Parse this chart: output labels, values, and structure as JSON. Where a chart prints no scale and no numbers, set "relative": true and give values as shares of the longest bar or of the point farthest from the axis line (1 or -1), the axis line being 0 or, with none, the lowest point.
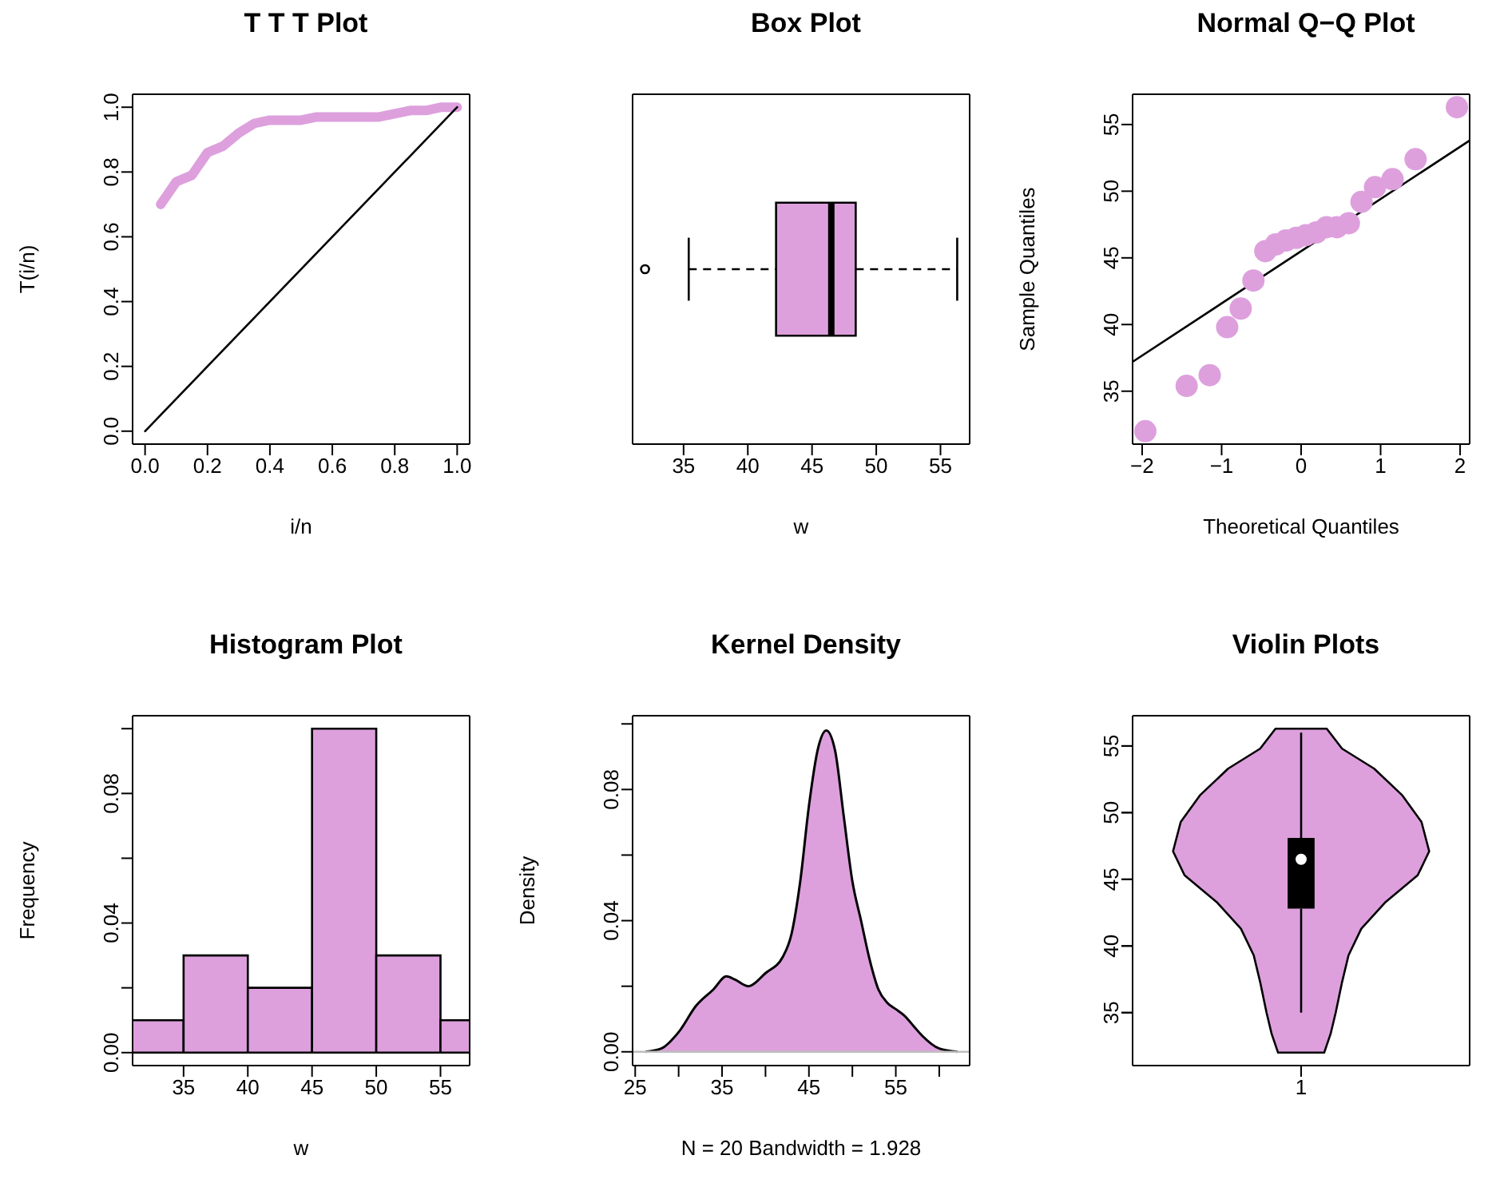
{
  "chart_data": [
    {
      "type": "line",
      "title": "T T T Plot",
      "xlabel": "i/n",
      "ylabel": "T(i/n)",
      "xlim": [
        -0.04,
        1.04
      ],
      "ylim": [
        -0.04,
        1.04
      ],
      "xticks": [
        {
          "value": 0,
          "label": "0.0"
        },
        {
          "value": 0.2,
          "label": "0.2"
        },
        {
          "value": 0.4,
          "label": "0.4"
        },
        {
          "value": 0.6,
          "label": "0.6"
        },
        {
          "value": 0.8,
          "label": "0.8"
        },
        {
          "value": 1,
          "label": "1.0"
        }
      ],
      "yticks": [
        {
          "value": 0,
          "label": "0.0"
        },
        {
          "value": 0.2,
          "label": "0.2"
        },
        {
          "value": 0.4,
          "label": "0.4"
        },
        {
          "value": 0.6,
          "label": "0.6"
        },
        {
          "value": 0.8,
          "label": "0.8"
        },
        {
          "value": 1,
          "label": "1.0"
        }
      ],
      "series": [
        {
          "color": "#dda0dd",
          "x": [
            0.05,
            0.1,
            0.15,
            0.2,
            0.25,
            0.3,
            0.35,
            0.4,
            0.45,
            0.5,
            0.55,
            0.6,
            0.65,
            0.7,
            0.75,
            0.8,
            0.85,
            0.9,
            0.95,
            1.0
          ],
          "values": [
            0.7,
            0.77,
            0.79,
            0.86,
            0.88,
            0.92,
            0.95,
            0.96,
            0.96,
            0.96,
            0.97,
            0.97,
            0.97,
            0.97,
            0.97,
            0.98,
            0.99,
            0.99,
            1.0,
            1.0
          ]
        },
        {
          "color": "#000000",
          "x": [
            0,
            1
          ],
          "values": [
            0,
            1
          ]
        }
      ]
    },
    {
      "type": "box",
      "orientation": "horizontal",
      "title": "Box Plot",
      "xlabel": "w",
      "categories": [
        null
      ],
      "color": "#dda0dd",
      "xlim": [
        31.03,
        57.27
      ],
      "xticks": [
        35,
        40,
        45,
        50,
        55
      ],
      "boxes": [
        {
          "low": 35.4,
          "q1": 42.2,
          "median": 46.5,
          "q3": 48.4,
          "high": 56.3,
          "outliers": [
            32.0
          ]
        }
      ]
    },
    {
      "type": "scatter",
      "title": "Normal Q−Q Plot",
      "xlabel": "Theoretical Quantiles",
      "ylabel": "Sample Quantiles",
      "xlim": [
        -2.12,
        2.12
      ],
      "ylim": [
        31.03,
        57.27
      ],
      "xticks": [
        {
          "value": -2,
          "label": "−2"
        },
        {
          "value": -1,
          "label": "−1"
        },
        0,
        1,
        2
      ],
      "yticks": [
        35,
        40,
        45,
        50,
        55
      ],
      "series": [
        {
          "color": "#dda0dd",
          "marker": "circle",
          "x": [
            -1.96,
            -1.44,
            -1.15,
            -0.93,
            -0.76,
            -0.6,
            -0.45,
            -0.32,
            -0.19,
            -0.06,
            0.06,
            0.19,
            0.32,
            0.45,
            0.6,
            0.76,
            0.93,
            1.15,
            1.44,
            1.96
          ],
          "values": [
            32.0,
            35.4,
            36.2,
            39.8,
            41.2,
            43.3,
            45.5,
            46.0,
            46.3,
            46.5,
            46.7,
            46.9,
            47.3,
            47.3,
            47.6,
            49.2,
            50.3,
            50.9,
            52.4,
            56.3
          ]
        },
        {
          "type": "line",
          "color": "#000000",
          "x": [
            -2.12,
            2.12
          ],
          "values": [
            37.2,
            53.8
          ]
        }
      ]
    },
    {
      "type": "histogram",
      "title": "Histogram Plot",
      "xlabel": "w",
      "ylabel": "Frequency",
      "color": "#dda0dd",
      "bins": [
        30,
        35,
        40,
        45,
        50,
        55,
        60
      ],
      "values": [
        0.01,
        0.03,
        0.02,
        0.1,
        0.03,
        0.01
      ],
      "xlim": [
        31.03,
        57.27
      ],
      "xticks": [
        35,
        40,
        45,
        50,
        55
      ],
      "ylim": [
        -0.004,
        0.104
      ],
      "yticks": [
        {
          "value": 0,
          "label": "0.00"
        },
        {
          "value": 0.02,
          "label": null
        },
        {
          "value": 0.04,
          "label": "0.04"
        },
        {
          "value": 0.06,
          "label": null
        },
        {
          "value": 0.08,
          "label": "0.08"
        },
        {
          "value": 0.1,
          "label": null
        }
      ]
    },
    {
      "type": "area",
      "title": "Kernel Density",
      "xlabel": "N = 20   Bandwidth = 1.928",
      "ylabel": "Density",
      "color": "#dda0dd",
      "xlim": [
        24.7,
        63.5
      ],
      "ylim": [
        -0.0042,
        0.1025
      ],
      "xticks": [
        25,
        {
          "value": 30,
          "label": null
        },
        35,
        {
          "value": 40,
          "label": null
        },
        45,
        {
          "value": 50,
          "label": null
        },
        55,
        {
          "value": 60,
          "label": null
        }
      ],
      "yticks": [
        {
          "value": 0,
          "label": "0.00"
        },
        {
          "value": 0.02,
          "label": null
        },
        {
          "value": 0.04,
          "label": "0.04"
        },
        {
          "value": 0.06,
          "label": null
        },
        {
          "value": 0.08,
          "label": "0.08"
        },
        {
          "value": 0.1,
          "label": null
        }
      ],
      "x": [
        26.2,
        28,
        30,
        32,
        34,
        35.5,
        36.5,
        38,
        40,
        42,
        43,
        44,
        45,
        46,
        47,
        48,
        49,
        50,
        51,
        52,
        53,
        54,
        55,
        56,
        57,
        58,
        60,
        62.1
      ],
      "values": [
        0,
        0.001,
        0.006,
        0.014,
        0.019,
        0.023,
        0.022,
        0.02,
        0.024,
        0.029,
        0.036,
        0.052,
        0.075,
        0.092,
        0.098,
        0.092,
        0.072,
        0.052,
        0.04,
        0.028,
        0.019,
        0.015,
        0.013,
        0.011,
        0.008,
        0.005,
        0.001,
        0
      ],
      "ref_lines": [
        {
          "axis": "y",
          "value": 0,
          "color": "#bebebe"
        }
      ]
    },
    {
      "type": "box",
      "title": "Violin Plots",
      "categories": [
        "1"
      ],
      "ylim": [
        31.03,
        57.27
      ],
      "yticks": [
        35,
        40,
        45,
        50,
        55
      ],
      "tick_labels": "x",
      "boxes": [
        {
          "low": 35,
          "q1": 42.8,
          "median": 46.5,
          "q3": 48.1,
          "high": 56
        }
      ]
    },
    {
      "type": "area",
      "orientation": "horizontal",
      "relative": true,
      "tick_labels": "y",
      "color": "#dda0dd",
      "ylim": [
        31.03,
        57.27
      ],
      "yticks": [
        35,
        40,
        45,
        50,
        55
      ],
      "x": [
        32,
        33.4,
        35,
        37.3,
        39.3,
        41.3,
        43.3,
        45.3,
        47.1,
        49.3,
        51.3,
        53.3,
        54.8,
        56.3
      ],
      "values": [
        0.18,
        0.23,
        0.27,
        0.32,
        0.37,
        0.47,
        0.66,
        0.91,
        1,
        0.94,
        0.79,
        0.57,
        0.32,
        0.2
      ]
    }
  ]
}
